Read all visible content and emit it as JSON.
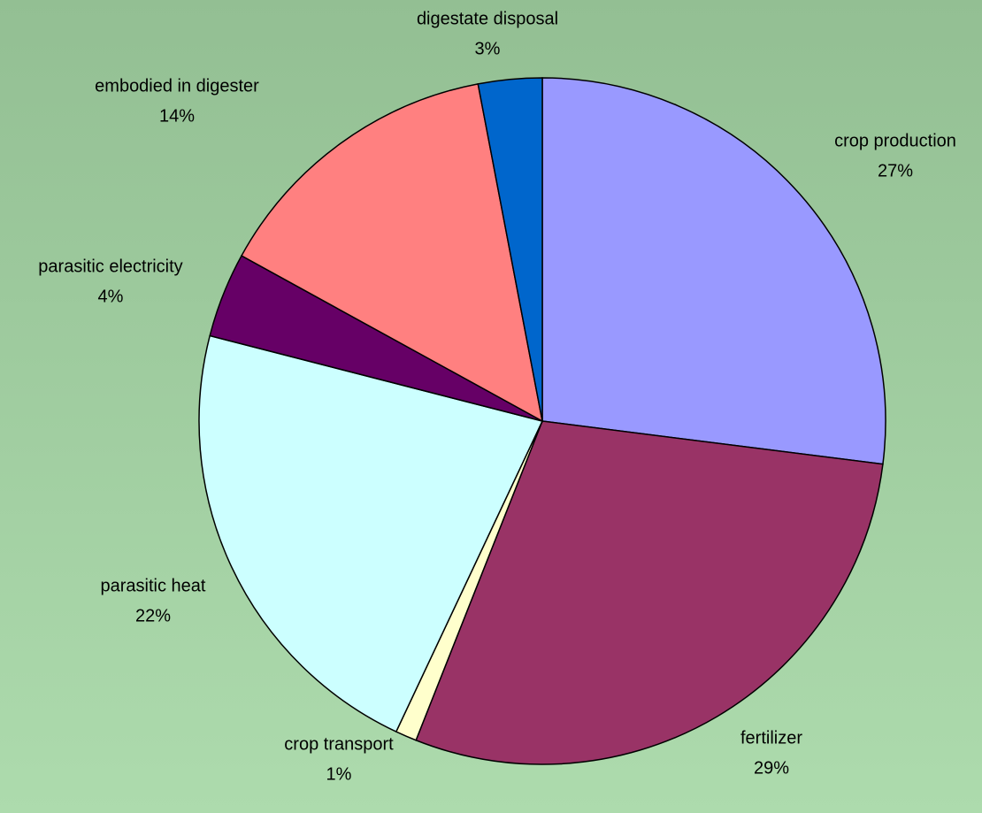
{
  "chart_data": {
    "type": "pie",
    "categories": [
      "crop production",
      "fertilizer",
      "crop transport",
      "parasitic heat",
      "parasitic electricity",
      "embodied in digester",
      "digestate disposal"
    ],
    "values": [
      27,
      29,
      1,
      22,
      4,
      14,
      3
    ],
    "value_labels": [
      "27%",
      "29%",
      "1%",
      "22%",
      "4%",
      "14%",
      "3%"
    ],
    "colors": [
      "#9999ff",
      "#993366",
      "#ffffcc",
      "#ccffff",
      "#660066",
      "#ff8080",
      "#0066cc"
    ]
  }
}
